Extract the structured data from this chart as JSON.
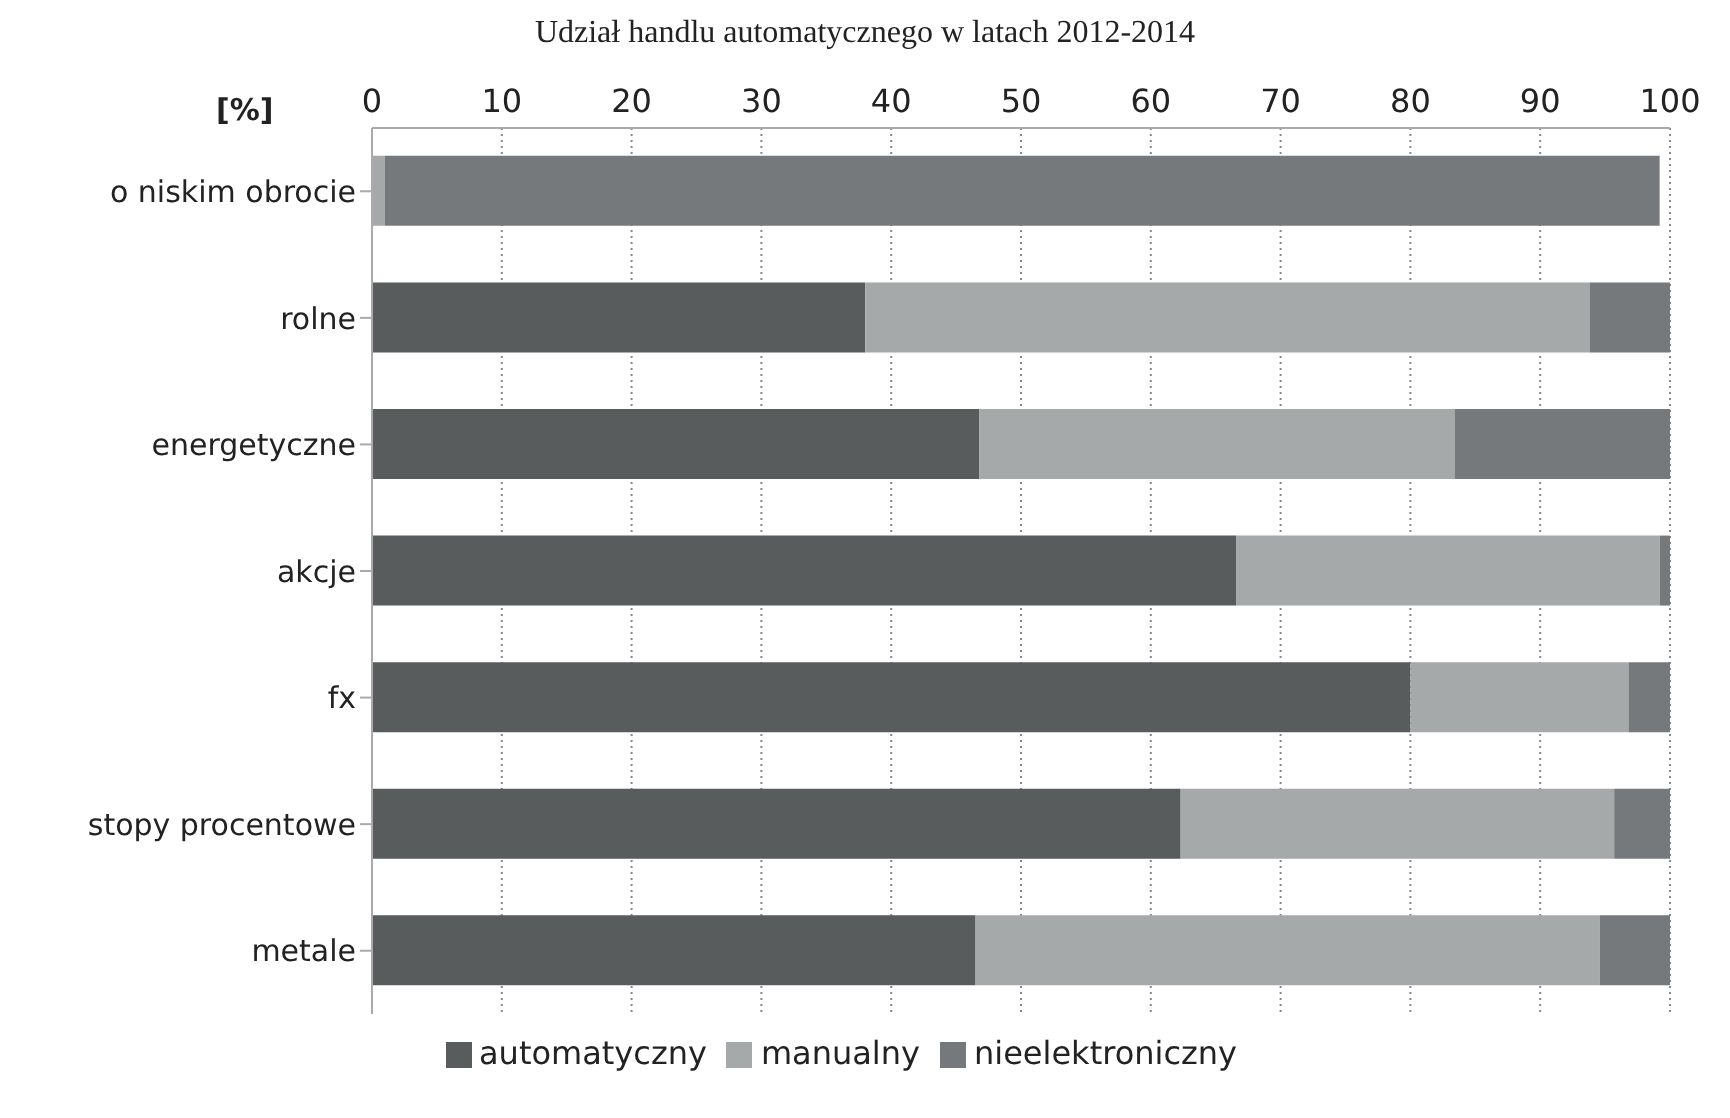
{
  "chart_data": {
    "type": "bar",
    "orientation": "horizontal",
    "stacked": true,
    "title": "Udział handlu automatycznego w latach 2012-2014",
    "xlabel": "[%]",
    "categories": [
      "o niskim obrocie",
      "rolne",
      "energetyczne",
      "akcje",
      "fx",
      "stopy procentowe",
      "metale"
    ],
    "series": [
      {
        "name": "automatyczny",
        "color": "#595c5d",
        "values": [
          0,
          38.0,
          46.8,
          66.6,
          80.0,
          62.3,
          46.5
        ]
      },
      {
        "name": "manualny",
        "color": "#a6a9aa",
        "values": [
          1.0,
          55.8,
          36.6,
          32.6,
          16.8,
          33.4,
          48.1
        ]
      },
      {
        "name": "nieelektroniczny",
        "color": "#76797c",
        "values": [
          98.2,
          6.2,
          16.6,
          0.8,
          3.2,
          4.3,
          5.4
        ]
      }
    ],
    "xlim": [
      0,
      100
    ],
    "xticks": [
      0,
      10,
      20,
      30,
      40,
      50,
      60,
      70,
      80,
      90,
      100
    ],
    "grid": "x",
    "legend": "bottom"
  }
}
